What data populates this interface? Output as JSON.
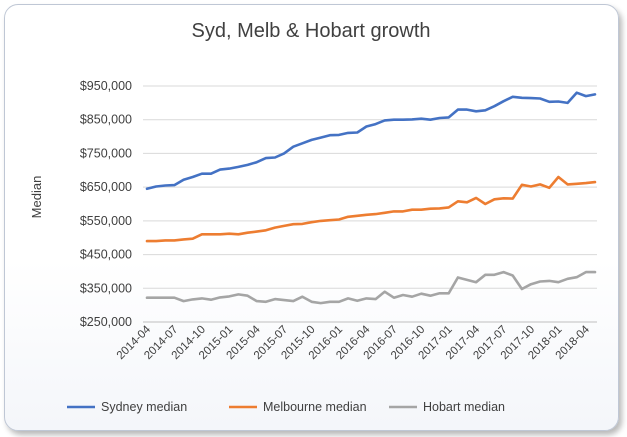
{
  "chart_data": {
    "type": "line",
    "title": "Syd, Melb & Hobart growth",
    "xlabel": "",
    "ylabel": "Median",
    "ylim": [
      250000,
      950000
    ],
    "yticks": [
      250000,
      350000,
      450000,
      550000,
      650000,
      750000,
      850000,
      950000
    ],
    "ytick_labels": [
      "$250,000",
      "$350,000",
      "$450,000",
      "$550,000",
      "$650,000",
      "$750,000",
      "$850,000",
      "$950,000"
    ],
    "grid": true,
    "legend_position": "bottom",
    "xtick_labels": [
      "2014-04",
      "2014-07",
      "2014-10",
      "2015-01",
      "2015-04",
      "2015-07",
      "2015-10",
      "2016-01",
      "2016-04",
      "2016-07",
      "2016-10",
      "2017-01",
      "2017-04",
      "2017-07",
      "2017-10",
      "2018-01",
      "2018-04"
    ],
    "x": [
      "2014-04",
      "2014-05",
      "2014-06",
      "2014-07",
      "2014-08",
      "2014-09",
      "2014-10",
      "2014-11",
      "2014-12",
      "2015-01",
      "2015-02",
      "2015-03",
      "2015-04",
      "2015-05",
      "2015-06",
      "2015-07",
      "2015-08",
      "2015-09",
      "2015-10",
      "2015-11",
      "2015-12",
      "2016-01",
      "2016-02",
      "2016-03",
      "2016-04",
      "2016-05",
      "2016-06",
      "2016-07",
      "2016-08",
      "2016-09",
      "2016-10",
      "2016-11",
      "2016-12",
      "2017-01",
      "2017-02",
      "2017-03",
      "2017-04",
      "2017-05",
      "2017-06",
      "2017-07",
      "2017-08",
      "2017-09",
      "2017-10",
      "2017-11",
      "2017-12",
      "2018-01",
      "2018-02",
      "2018-03",
      "2018-04",
      "2018-05"
    ],
    "series": [
      {
        "name": "Sydney median",
        "color": "#4472c4",
        "values": [
          645000,
          652000,
          655000,
          656000,
          672000,
          680000,
          690000,
          690000,
          702000,
          705000,
          710000,
          716000,
          724000,
          736000,
          738000,
          750000,
          770000,
          780000,
          790000,
          797000,
          804000,
          805000,
          811000,
          812000,
          830000,
          837000,
          848000,
          850000,
          850000,
          851000,
          853000,
          850000,
          855000,
          857000,
          880000,
          880000,
          875000,
          878000,
          890000,
          905000,
          918000,
          915000,
          914000,
          913000,
          903000,
          904000,
          900000,
          930000,
          920000,
          925000
        ]
      },
      {
        "name": "Melbourne median",
        "color": "#ed7d31",
        "values": [
          490000,
          490000,
          492000,
          492000,
          495000,
          497000,
          510000,
          510000,
          510000,
          512000,
          510000,
          515000,
          518000,
          522000,
          530000,
          535000,
          540000,
          541000,
          546000,
          550000,
          552000,
          554000,
          562000,
          565000,
          568000,
          570000,
          574000,
          578000,
          578000,
          583000,
          583000,
          586000,
          587000,
          590000,
          608000,
          605000,
          618000,
          600000,
          614000,
          617000,
          616000,
          657000,
          652000,
          658000,
          648000,
          680000,
          658000,
          660000,
          662000,
          665000
        ]
      },
      {
        "name": "Hobart median",
        "color": "#a5a5a5",
        "values": [
          322000,
          322000,
          322000,
          322000,
          312000,
          317000,
          320000,
          316000,
          323000,
          326000,
          332000,
          328000,
          312000,
          310000,
          318000,
          315000,
          312000,
          325000,
          310000,
          306000,
          310000,
          310000,
          320000,
          313000,
          320000,
          318000,
          340000,
          322000,
          330000,
          325000,
          334000,
          328000,
          335000,
          335000,
          382000,
          375000,
          368000,
          390000,
          390000,
          398000,
          388000,
          348000,
          362000,
          370000,
          372000,
          368000,
          378000,
          383000,
          398000,
          398000
        ]
      }
    ]
  }
}
